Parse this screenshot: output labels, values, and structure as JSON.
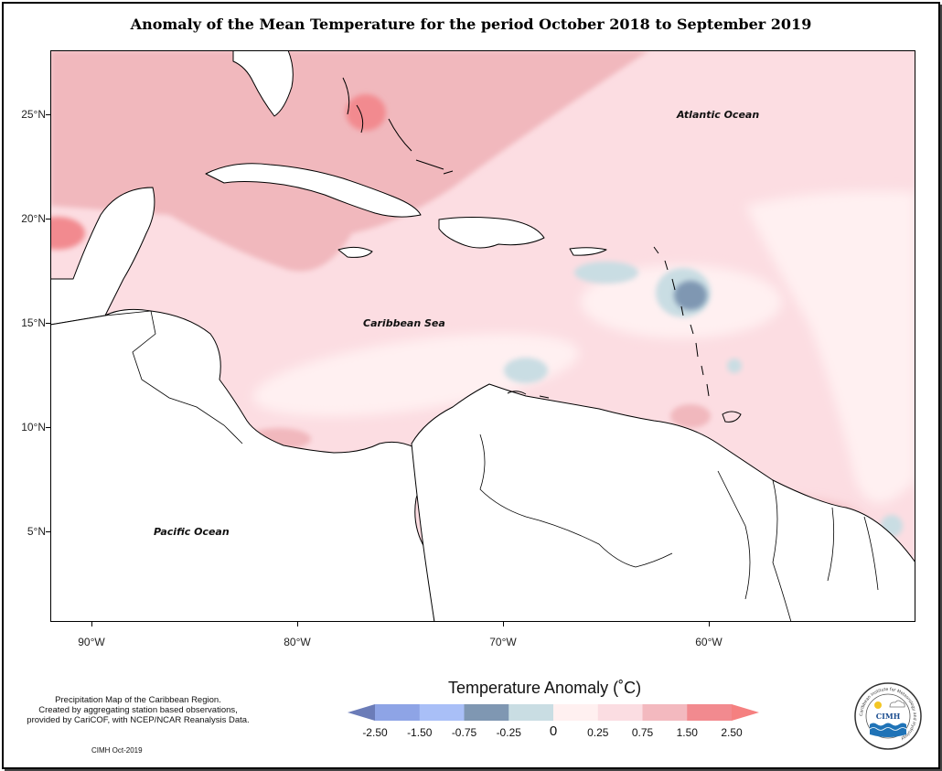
{
  "title": "Anomaly of the Mean Temperature for the period October 2018 to September 2019",
  "map": {
    "lat_ticks": [
      "25°N",
      "20°N",
      "15°N",
      "10°N",
      "5°N"
    ],
    "lon_ticks": [
      "90°W",
      "80°W",
      "70°W",
      "60°W"
    ],
    "region_labels": {
      "atlantic": "Atlantic Ocean",
      "caribbean": "Caribbean Sea",
      "pacific": "Pacific Ocean"
    },
    "extent": {
      "lon_min": -92,
      "lon_max": -50,
      "lat_min": 1,
      "lat_max": 28
    }
  },
  "legend": {
    "title": "Temperature Anomaly (˚C)",
    "ticks": [
      "-2.50",
      "-1.50",
      "-0.75",
      "-0.25",
      "0",
      "0.25",
      "0.75",
      "1.50",
      "2.50"
    ],
    "colors": [
      "#6b7cb8",
      "#8ea4e6",
      "#a9bff7",
      "#7f97b2",
      "#c9dde3",
      "#fff0f0",
      "#fbdde2",
      "#f3b9bf",
      "#f28a8f",
      "#f58080"
    ]
  },
  "footnote": {
    "lines": [
      "Precipitation Map of the Caribbean Region.",
      "Created by aggregating station based observations,",
      "provided by CariCOF, with NCEP/NCAR Reanalysis Data."
    ],
    "credit": "CIMH Oct-2019"
  },
  "logo": {
    "arc_text": "Caribbean Institute for Meteorology and Hydrology",
    "abbr": "CIMH"
  }
}
